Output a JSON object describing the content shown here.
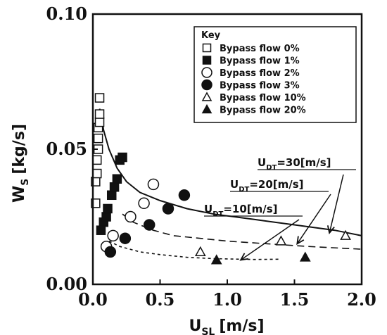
{
  "chart_data": {
    "type": "scatter",
    "xlabel": "U",
    "xlabel_sub": "SL",
    "xlabel_unit": "[m/s]",
    "ylabel": "W",
    "ylabel_sub": "S",
    "ylabel_unit": "[kg/s]",
    "xlim": [
      0.0,
      2.0
    ],
    "ylim": [
      0.0,
      0.1
    ],
    "x_ticks": [
      "0.0",
      "0.5",
      "1.0",
      "1.5",
      "2.0"
    ],
    "x_tick_values": [
      0.0,
      0.5,
      1.0,
      1.5,
      2.0
    ],
    "y_ticks": [
      "0.00",
      "0.05",
      "0.10"
    ],
    "y_tick_values": [
      0.0,
      0.05,
      0.1
    ],
    "grid": false,
    "legend_title": "Key",
    "legend_placement": "top-right",
    "series": [
      {
        "name": "Bypass flow 0%",
        "marker": "square-open",
        "points": [
          [
            0.02,
            0.03
          ],
          [
            0.02,
            0.038
          ],
          [
            0.03,
            0.041
          ],
          [
            0.03,
            0.046
          ],
          [
            0.04,
            0.05
          ],
          [
            0.04,
            0.054
          ],
          [
            0.04,
            0.058
          ],
          [
            0.05,
            0.06
          ],
          [
            0.05,
            0.063
          ],
          [
            0.05,
            0.069
          ]
        ]
      },
      {
        "name": "Bypass flow 1%",
        "marker": "square-filled",
        "points": [
          [
            0.06,
            0.02
          ],
          [
            0.08,
            0.023
          ],
          [
            0.1,
            0.025
          ],
          [
            0.11,
            0.028
          ],
          [
            0.14,
            0.033
          ],
          [
            0.16,
            0.036
          ],
          [
            0.18,
            0.039
          ],
          [
            0.2,
            0.046
          ],
          [
            0.22,
            0.047
          ]
        ]
      },
      {
        "name": "Bypass flow 2%",
        "marker": "circle-open",
        "points": [
          [
            0.1,
            0.014
          ],
          [
            0.15,
            0.018
          ],
          [
            0.28,
            0.025
          ],
          [
            0.38,
            0.03
          ],
          [
            0.45,
            0.037
          ]
        ]
      },
      {
        "name": "Bypass flow 3%",
        "marker": "circle-filled",
        "points": [
          [
            0.13,
            0.012
          ],
          [
            0.24,
            0.017
          ],
          [
            0.42,
            0.022
          ],
          [
            0.56,
            0.028
          ],
          [
            0.68,
            0.033
          ]
        ]
      },
      {
        "name": "Bypass flow 10%",
        "marker": "triangle-open",
        "points": [
          [
            0.8,
            0.012
          ],
          [
            1.4,
            0.016
          ],
          [
            1.88,
            0.018
          ]
        ]
      },
      {
        "name": "Bypass flow 20%",
        "marker": "triangle-filled",
        "points": [
          [
            0.92,
            0.009
          ],
          [
            1.58,
            0.01
          ]
        ]
      }
    ],
    "curves": [
      {
        "style": "solid",
        "points": [
          [
            0.05,
            0.065
          ],
          [
            0.08,
            0.057
          ],
          [
            0.12,
            0.05
          ],
          [
            0.18,
            0.043
          ],
          [
            0.25,
            0.038
          ],
          [
            0.35,
            0.034
          ],
          [
            0.5,
            0.031
          ],
          [
            0.7,
            0.028
          ],
          [
            0.9,
            0.026
          ],
          [
            1.2,
            0.024
          ],
          [
            1.5,
            0.022
          ],
          [
            1.8,
            0.02
          ],
          [
            2.0,
            0.018
          ]
        ]
      },
      {
        "style": "long-dash",
        "points": [
          [
            0.22,
            0.026
          ],
          [
            0.3,
            0.023
          ],
          [
            0.45,
            0.02
          ],
          [
            0.6,
            0.018
          ],
          [
            0.8,
            0.017
          ],
          [
            1.0,
            0.016
          ],
          [
            1.3,
            0.015
          ],
          [
            1.6,
            0.014
          ],
          [
            2.0,
            0.013
          ]
        ]
      },
      {
        "style": "short-dash",
        "points": [
          [
            0.12,
            0.016
          ],
          [
            0.2,
            0.014
          ],
          [
            0.35,
            0.012
          ],
          [
            0.5,
            0.011
          ],
          [
            0.7,
            0.01
          ],
          [
            0.9,
            0.0095
          ],
          [
            1.2,
            0.0092
          ],
          [
            1.4,
            0.0093
          ]
        ]
      }
    ],
    "annotations": [
      {
        "label": "U",
        "sub": "DT",
        "rest": "=30[m/s]",
        "arrow_to": [
          1.76,
          0.019
        ]
      },
      {
        "label": "U",
        "sub": "DT",
        "rest": "=20[m/s]",
        "arrow_to": [
          1.52,
          0.015
        ]
      },
      {
        "label": "U",
        "sub": "DT",
        "rest": "=10[m/s]",
        "arrow_to": [
          1.1,
          0.009
        ]
      }
    ]
  }
}
